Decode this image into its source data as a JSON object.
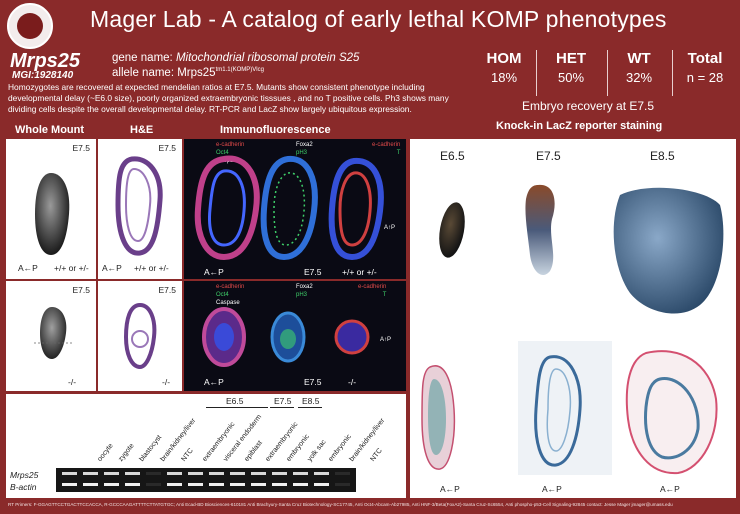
{
  "header": {
    "title": "Mager Lab - A catalog of early lethal KOMP phenotypes",
    "logo_icon": "university-seal-icon"
  },
  "gene": {
    "symbol": "Mrps25",
    "mgi": "MGI:1928140",
    "gene_name_label": "gene name:",
    "gene_name_value": "Mitochondrial ribosomal protein S25",
    "allele_name_label": "allele name:",
    "allele_name_base": "Mrps25",
    "allele_name_sup": "tm1.1(KOMP)Vlcg"
  },
  "description": "Homozygotes are recovered at expected mendelian ratios at E7.5.  Mutants show consistent phenotype including developmental delay (~E6.0 size), poorly organized extraembryonic tisssues , and no T positive cells.  Ph3 shows many dividing cells despite the overall developmental delay. RT-PCR and LacZ  show largely ubiquitous expression.",
  "stats": {
    "headers": [
      "HOM",
      "HET",
      "WT",
      "Total"
    ],
    "values": [
      "18%",
      "50%",
      "32%",
      "n = 28"
    ],
    "caption": "Embryo recovery at E7.5"
  },
  "sections": {
    "whole_mount": "Whole Mount",
    "he": "H&E",
    "if": "Immunofluorescence",
    "lacz": "Knock-in LacZ reporter staining"
  },
  "wt_row": {
    "stage": "E7.5",
    "stage_he": "E7.5",
    "stage_if": "E7.5",
    "genotype_wm": "+/+ or +/-",
    "genotype_he": "+/+ or +/-",
    "genotype_if": "+/+ or +/-",
    "axis": "A←P",
    "axis_if": "A←P",
    "axis_vertical": "A↑P",
    "if_labels_1": [
      "e-cadherin",
      "Oct4",
      "Caspase"
    ],
    "if_labels_2": [
      "Foxa2",
      "pH3"
    ],
    "if_labels_3": [
      "e-cadherin",
      "T"
    ]
  },
  "mut_row": {
    "stage": "E7.5",
    "stage_he": "E7.5",
    "stage_if": "E7.5",
    "genotype_wm": "-/-",
    "genotype_he": "-/-",
    "genotype_if": "-/-",
    "axis_if": "A←P",
    "axis_vertical": "A↑P",
    "if_labels_1": [
      "e-cadherin",
      "Oct4",
      "Caspase"
    ],
    "if_labels_2": [
      "Foxa2",
      "pH3"
    ],
    "if_labels_3": [
      "e-cadherin",
      "T"
    ]
  },
  "lacz": {
    "stages": [
      "E6.5",
      "E7.5",
      "E8.5"
    ],
    "axes": [
      "A←P",
      "A←P",
      "A←P"
    ]
  },
  "gel": {
    "stage_labels": [
      "E6.5",
      "E7.5",
      "E8.5"
    ],
    "lanes": [
      "oocyte",
      "zygote",
      "blastocyst",
      "brain/kidney/liver",
      "NTC",
      "extraembryonic",
      "visceral endoderm",
      "epiblast",
      "extraembryonic",
      "embryonic",
      "yolk sac",
      "embryonic",
      "brain/kidney/liver",
      "NTC"
    ],
    "rows": [
      "Mrps25",
      "B-actin"
    ]
  },
  "footer": "RT Primers: F-GGAGTTCCTGACTTCCACCA, R-GCCCAAGATTTTCTTATGTGC; Anti Ecad-BD Biosciences-610181 Anti Brachyury-Santa Cruz Biotechnology-SC17745, Anti Oct4-Abcam-Ab27985, Anti HNF-3/Beta(FoxA2)-Santa Cruz-Sc6554, Anti phospho-p53-Cell Signaling-92845 contact: Jesse Mager jmager@umass.edu",
  "colors": {
    "background": "#8a2a2a",
    "panel": "#ffffff",
    "if_background": "#0a0a14"
  }
}
